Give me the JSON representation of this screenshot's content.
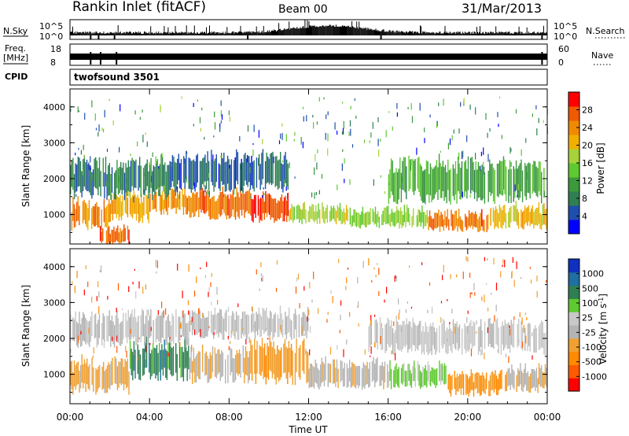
{
  "header": {
    "title": "Rankin Inlet (fitACF)",
    "beam": "Beam 00",
    "date": "31/Mar/2013"
  },
  "strips": {
    "nsky_label": "N.Sky",
    "nsearch_label": "N.Search",
    "nsky_ticks": [
      "10^5",
      "10^0"
    ],
    "nsearch_ticks": [
      "10^5",
      "10^0"
    ],
    "freq_label_1": "Freq.",
    "freq_label_2": "[MHz]",
    "freq_ticks": [
      "18",
      "8"
    ],
    "nave_label": "Nave",
    "nave_ticks": [
      "60",
      "0"
    ],
    "cpid_label": "CPID",
    "cpid_value": "twofsound 3501"
  },
  "colors": {
    "power_scale": [
      "#0000ff",
      "#1f4fae",
      "#2f7f52",
      "#3c9a3c",
      "#5ec930",
      "#a8d23a",
      "#f0b000",
      "#f08a00",
      "#f05a00",
      "#ff0000"
    ],
    "velocity_scale": [
      "#ff0000",
      "#ff5a00",
      "#ff8a00",
      "#f0a030",
      "#b4b4b4",
      "#c8c8c8",
      "#5ec930",
      "#2f7f52",
      "#1f6fa0",
      "#1030c0"
    ]
  },
  "chart_data": [
    {
      "type": "heatmap",
      "panel": "power",
      "ylabel": "Slant Range [km]",
      "yticks": [
        "4000",
        "3000",
        "2000",
        "1000"
      ],
      "ylim": [
        180,
        4500
      ],
      "xlim": [
        0,
        24
      ],
      "colorbar_label": "Power [dB]",
      "colorbar_ticks": [
        "28",
        "24",
        "20",
        "16",
        "12",
        "8",
        "4"
      ],
      "clim": [
        0,
        32
      ],
      "bands": [
        {
          "t0": 0.0,
          "t1": 2.0,
          "r0": 700,
          "r1": 1300,
          "value": 24
        },
        {
          "t0": 2.0,
          "t1": 4.0,
          "r0": 900,
          "r1": 1500,
          "value": 22
        },
        {
          "t0": 4.0,
          "t1": 6.0,
          "r0": 1100,
          "r1": 1600,
          "value": 24
        },
        {
          "t0": 6.0,
          "t1": 9.0,
          "r0": 1000,
          "r1": 1600,
          "value": 26
        },
        {
          "t0": 9.0,
          "t1": 11.0,
          "r0": 900,
          "r1": 1500,
          "value": 28
        },
        {
          "t0": 11.0,
          "t1": 14.0,
          "r0": 800,
          "r1": 1200,
          "value": 18
        },
        {
          "t0": 14.0,
          "t1": 18.0,
          "r0": 700,
          "r1": 1100,
          "value": 16
        },
        {
          "t0": 18.0,
          "t1": 21.0,
          "r0": 600,
          "r1": 1000,
          "value": 26
        },
        {
          "t0": 21.0,
          "t1": 24.0,
          "r0": 700,
          "r1": 1200,
          "value": 20
        },
        {
          "t0": 0.0,
          "t1": 5.0,
          "r0": 1600,
          "r1": 2400,
          "value": 8
        },
        {
          "t0": 5.0,
          "t1": 11.0,
          "r0": 1800,
          "r1": 2600,
          "value": 6
        },
        {
          "t0": 16.0,
          "t1": 24.0,
          "r0": 1500,
          "r1": 2400,
          "value": 12
        },
        {
          "t0": 1.5,
          "t1": 3.0,
          "r0": 200,
          "r1": 600,
          "value": 26
        }
      ]
    },
    {
      "type": "heatmap",
      "panel": "velocity",
      "ylabel": "Slant Range [km]",
      "yticks": [
        "4000",
        "3000",
        "2000",
        "1000"
      ],
      "ylim": [
        180,
        4500
      ],
      "xlim": [
        0,
        24
      ],
      "colorbar_label": "Velocity [m s^-1]",
      "colorbar_ticks": [
        "1000",
        "500",
        "100",
        "25",
        "-25",
        "-100",
        "-500",
        "-1000"
      ],
      "clim": [
        -1200,
        1200
      ],
      "bands": [
        {
          "t0": 0.0,
          "t1": 3.0,
          "r0": 600,
          "r1": 1300,
          "value": -300
        },
        {
          "t0": 3.0,
          "t1": 6.0,
          "r0": 1000,
          "r1": 1800,
          "value": 600
        },
        {
          "t0": 6.0,
          "t1": 9.0,
          "r0": 900,
          "r1": 1600,
          "value": -200
        },
        {
          "t0": 9.0,
          "t1": 12.0,
          "r0": 900,
          "r1": 1800,
          "value": -400
        },
        {
          "t0": 12.0,
          "t1": 16.0,
          "r0": 700,
          "r1": 1300,
          "value": -150
        },
        {
          "t0": 16.0,
          "t1": 19.0,
          "r0": 700,
          "r1": 1200,
          "value": 300
        },
        {
          "t0": 19.0,
          "t1": 22.0,
          "r0": 500,
          "r1": 1000,
          "value": -500
        },
        {
          "t0": 22.0,
          "t1": 24.0,
          "r0": 600,
          "r1": 1100,
          "value": -200
        },
        {
          "t0": 0.0,
          "t1": 6.0,
          "r0": 1900,
          "r1": 2600,
          "value": 0
        },
        {
          "t0": 6.0,
          "t1": 12.0,
          "r0": 2100,
          "r1": 2700,
          "value": 0
        },
        {
          "t0": 15.0,
          "t1": 24.0,
          "r0": 1700,
          "r1": 2400,
          "value": 60
        }
      ]
    }
  ],
  "xaxis": {
    "label": "Time UT",
    "ticks": [
      "00:00",
      "04:00",
      "08:00",
      "12:00",
      "16:00",
      "20:00",
      "00:00"
    ]
  }
}
